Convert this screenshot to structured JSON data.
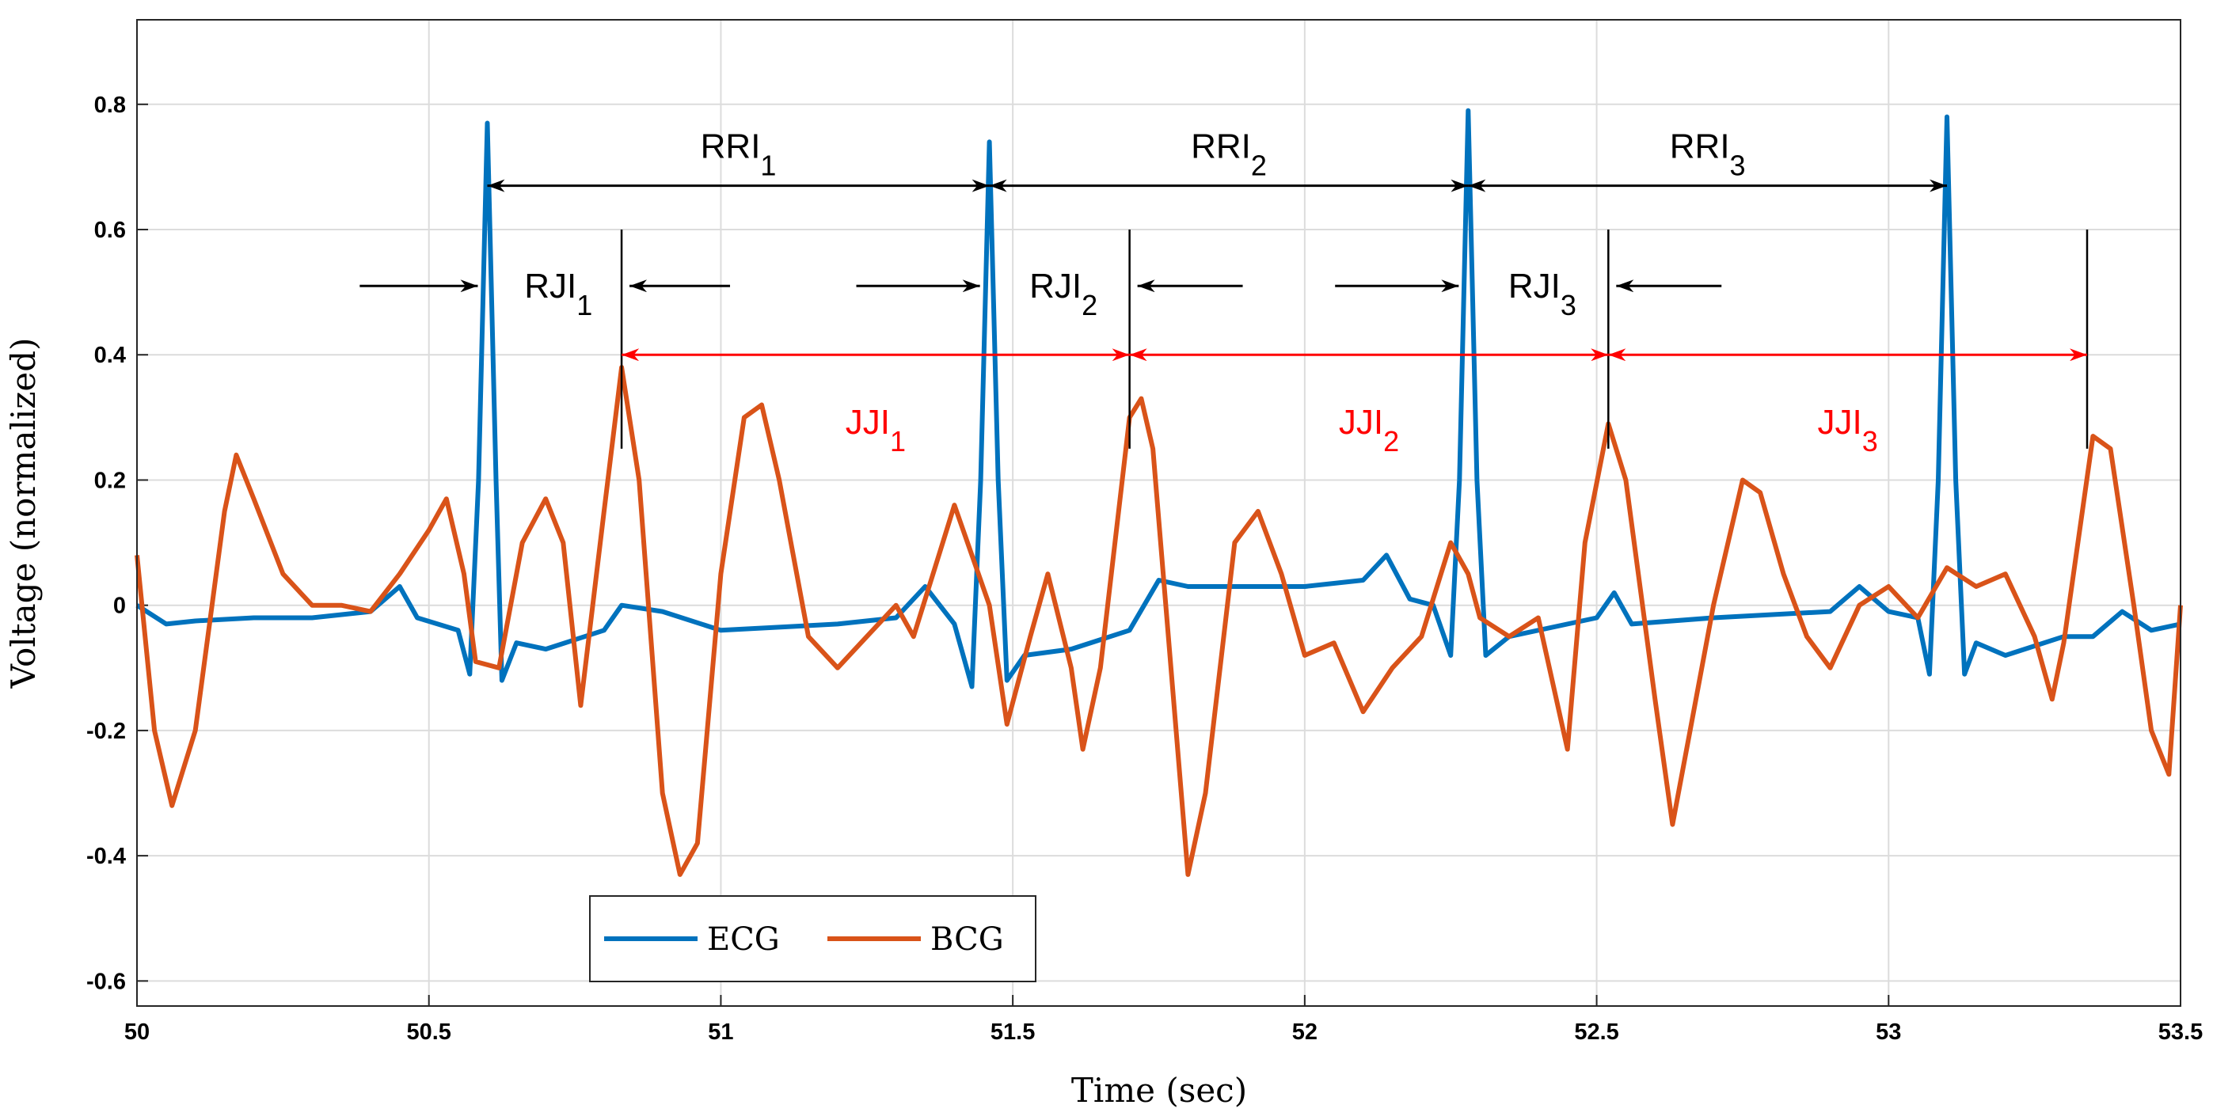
{
  "chart_data": {
    "type": "line",
    "xlabel": "Time (sec)",
    "ylabel": "Voltage (normalized)",
    "xlim": [
      50,
      53.5
    ],
    "ylim": [
      -0.64,
      0.935
    ],
    "xticks": [
      50,
      50.5,
      51,
      51.5,
      52,
      52.5,
      53,
      53.5
    ],
    "yticks": [
      -0.6,
      -0.4,
      -0.2,
      0,
      0.2,
      0.4,
      0.6,
      0.8
    ],
    "grid": true,
    "legend_loc": "lower center",
    "series": [
      {
        "name": "ECG",
        "color": "#0072bd",
        "x": [
          50,
          50.05,
          50.1,
          50.2,
          50.3,
          50.4,
          50.45,
          50.48,
          50.55,
          50.57,
          50.585,
          50.6,
          50.615,
          50.625,
          50.65,
          50.7,
          50.8,
          50.83,
          50.9,
          51.0,
          51.2,
          51.3,
          51.35,
          51.4,
          51.43,
          51.445,
          51.46,
          51.475,
          51.49,
          51.52,
          51.6,
          51.7,
          51.75,
          51.8,
          51.9,
          52.0,
          52.1,
          52.14,
          52.18,
          52.22,
          52.25,
          52.265,
          52.28,
          52.295,
          52.31,
          52.35,
          52.5,
          52.53,
          52.56,
          52.7,
          52.9,
          52.95,
          53.0,
          53.05,
          53.07,
          53.085,
          53.1,
          53.115,
          53.13,
          53.15,
          53.2,
          53.3,
          53.35,
          53.4,
          53.45,
          53.5
        ],
        "values": [
          0,
          -0.03,
          -0.025,
          -0.02,
          -0.02,
          -0.01,
          0.03,
          -0.02,
          -0.04,
          -0.11,
          0.2,
          0.77,
          0.2,
          -0.12,
          -0.06,
          -0.07,
          -0.04,
          0,
          -0.01,
          -0.04,
          -0.03,
          -0.02,
          0.03,
          -0.03,
          -0.13,
          0.2,
          0.74,
          0.2,
          -0.12,
          -0.08,
          -0.07,
          -0.04,
          0.04,
          0.03,
          0.03,
          0.03,
          0.04,
          0.08,
          0.01,
          0,
          -0.08,
          0.2,
          0.79,
          0.2,
          -0.08,
          -0.05,
          -0.02,
          0.02,
          -0.03,
          -0.02,
          -0.01,
          0.03,
          -0.01,
          -0.02,
          -0.11,
          0.2,
          0.78,
          0.2,
          -0.11,
          -0.06,
          -0.08,
          -0.05,
          -0.05,
          -0.01,
          -0.04,
          -0.03
        ]
      },
      {
        "name": "BCG",
        "color": "#d95319",
        "x": [
          50,
          50.03,
          50.06,
          50.1,
          50.15,
          50.17,
          50.2,
          50.25,
          50.3,
          50.35,
          50.4,
          50.45,
          50.5,
          50.53,
          50.56,
          50.58,
          50.62,
          50.66,
          50.7,
          50.73,
          50.76,
          50.8,
          50.83,
          50.86,
          50.9,
          50.93,
          50.96,
          51.0,
          51.04,
          51.07,
          51.1,
          51.15,
          51.2,
          51.25,
          51.3,
          51.33,
          51.38,
          51.4,
          51.43,
          51.46,
          51.49,
          51.53,
          51.56,
          51.6,
          51.62,
          51.65,
          51.7,
          51.72,
          51.74,
          51.8,
          51.83,
          51.88,
          51.92,
          51.96,
          52.0,
          52.05,
          52.1,
          52.15,
          52.2,
          52.25,
          52.28,
          52.3,
          52.35,
          52.4,
          52.45,
          52.48,
          52.52,
          52.55,
          52.6,
          52.63,
          52.66,
          52.7,
          52.75,
          52.78,
          52.82,
          52.86,
          52.9,
          52.95,
          53.0,
          53.05,
          53.1,
          53.15,
          53.2,
          53.25,
          53.28,
          53.3,
          53.35,
          53.38,
          53.42,
          53.45,
          53.48,
          53.5
        ],
        "values": [
          0.08,
          -0.2,
          -0.32,
          -0.2,
          0.15,
          0.24,
          0.17,
          0.05,
          0,
          0,
          -0.01,
          0.05,
          0.12,
          0.17,
          0.05,
          -0.09,
          -0.1,
          0.1,
          0.17,
          0.1,
          -0.16,
          0.15,
          0.38,
          0.2,
          -0.3,
          -0.43,
          -0.38,
          0.05,
          0.3,
          0.32,
          0.2,
          -0.05,
          -0.1,
          -0.05,
          0,
          -0.05,
          0.1,
          0.16,
          0.08,
          0,
          -0.19,
          -0.05,
          0.05,
          -0.1,
          -0.23,
          -0.1,
          0.3,
          0.33,
          0.25,
          -0.43,
          -0.3,
          0.1,
          0.15,
          0.05,
          -0.08,
          -0.06,
          -0.17,
          -0.1,
          -0.05,
          0.1,
          0.05,
          -0.02,
          -0.05,
          -0.02,
          -0.23,
          0.1,
          0.29,
          0.2,
          -0.15,
          -0.35,
          -0.2,
          0,
          0.2,
          0.18,
          0.05,
          -0.05,
          -0.1,
          0,
          0.03,
          -0.02,
          0.06,
          0.03,
          0.05,
          -0.05,
          -0.15,
          -0.06,
          0.27,
          0.25,
          0,
          -0.2,
          -0.27,
          0
        ]
      }
    ],
    "j_markers": {
      "x": [
        50.83,
        51.7,
        52.52,
        53.34
      ],
      "ymin": 0.25,
      "ymax": 0.6
    },
    "intervals": [
      {
        "label": "RRI",
        "sub": "1",
        "from": 50.6,
        "to": 51.46,
        "y": 0.67,
        "color": "#000000",
        "style": "outward"
      },
      {
        "label": "RRI",
        "sub": "2",
        "from": 51.46,
        "to": 52.28,
        "y": 0.67,
        "color": "#000000",
        "style": "outward"
      },
      {
        "label": "RRI",
        "sub": "3",
        "from": 52.28,
        "to": 53.1,
        "y": 0.67,
        "color": "#000000",
        "style": "outward"
      },
      {
        "label": "RJI",
        "sub": "1",
        "from": 50.6,
        "to": 50.83,
        "y": 0.51,
        "color": "#000000",
        "style": "inward"
      },
      {
        "label": "RJI",
        "sub": "2",
        "from": 51.46,
        "to": 51.7,
        "y": 0.51,
        "color": "#000000",
        "style": "inward"
      },
      {
        "label": "RJI",
        "sub": "3",
        "from": 52.28,
        "to": 52.52,
        "y": 0.51,
        "color": "#000000",
        "style": "inward"
      },
      {
        "label": "JJI",
        "sub": "1",
        "from": 50.83,
        "to": 51.7,
        "y": 0.4,
        "color": "#ff0000",
        "style": "outward"
      },
      {
        "label": "JJI",
        "sub": "2",
        "from": 51.7,
        "to": 52.52,
        "y": 0.4,
        "color": "#ff0000",
        "style": "outward"
      },
      {
        "label": "JJI",
        "sub": "3",
        "from": 52.52,
        "to": 53.34,
        "y": 0.4,
        "color": "#ff0000",
        "style": "outward"
      }
    ]
  }
}
